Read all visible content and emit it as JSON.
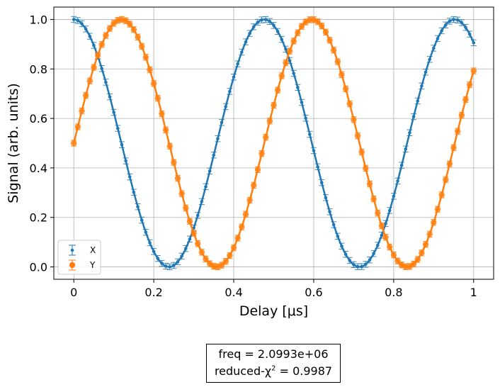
{
  "chart_data": {
    "type": "scatter",
    "title": "",
    "xlabel": "Delay [μs]",
    "ylabel": "Signal (arb. units)",
    "xlim": [
      -0.05,
      1.05
    ],
    "ylim": [
      -0.05,
      1.05
    ],
    "xticks": [
      0,
      0.2,
      0.4,
      0.6,
      0.8,
      1
    ],
    "xtick_labels": [
      "0",
      "0.2",
      "0.4",
      "0.6",
      "0.8",
      "1"
    ],
    "yticks": [
      0,
      0.2,
      0.4,
      0.6,
      0.8,
      1.0
    ],
    "ytick_labels": [
      "0.0",
      "0.2",
      "0.4",
      "0.6",
      "0.8",
      "1.0"
    ],
    "grid": true,
    "legend_position": "lower-left",
    "series": [
      {
        "name": "X",
        "color": "#1f77b4",
        "marker": "dot",
        "model": "0.5 + 0.5*cos(2*pi*f*t)",
        "frequency_hz": 2099300,
        "x_range": [
          0,
          1
        ],
        "points": 101,
        "errorbar": 0.012
      },
      {
        "name": "Y",
        "color": "#ff7f0e",
        "marker": "circle",
        "model": "0.5 + 0.5*sin(2*pi*f*t)",
        "frequency_hz": 2099300,
        "x_range": [
          0,
          1
        ],
        "points": 101,
        "errorbar": 0.012
      }
    ]
  },
  "fit_box": {
    "freq_label": "freq =  2.0993e+06",
    "chi_label_prefix": "reduced-χ",
    "chi_label_sup": "2",
    "chi_label_suffix": " =  0.9987"
  },
  "legend": {
    "x_label": "X",
    "y_label": "Y"
  }
}
